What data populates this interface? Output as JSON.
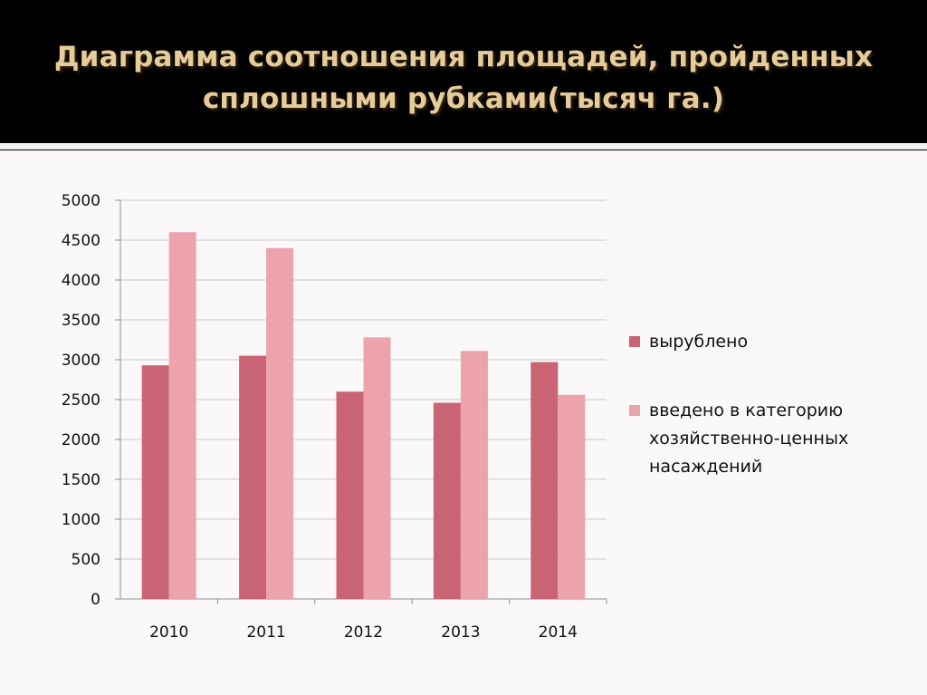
{
  "slide": {
    "title_line1": "Диаграмма соотношения площадей, пройденных",
    "title_line2": "сплошными рубками(тысяч га.)"
  },
  "colors": {
    "series1": "#c86474",
    "series2": "#eca3ab",
    "grid": "#c9c9c9",
    "axis": "#8f8f8f"
  },
  "chart_data": {
    "type": "bar",
    "title": "Диаграмма соотношения площадей, пройденных сплошными рубками(тысяч га.)",
    "categories": [
      "2010",
      "2011",
      "2012",
      "2013",
      "2014"
    ],
    "series": [
      {
        "name": "вырублено",
        "values": [
          2930,
          3050,
          2600,
          2460,
          2970
        ]
      },
      {
        "name": "введено в категорию хозяйственно-ценных насаждений",
        "values": [
          4600,
          4400,
          3280,
          3110,
          2560
        ]
      }
    ],
    "ylim": [
      0,
      5000
    ],
    "yticks": [
      "0",
      "500",
      "1000",
      "1500",
      "2000",
      "2500",
      "3000",
      "3500",
      "4000",
      "4500",
      "5000"
    ],
    "grid": true,
    "legend_position": "right",
    "legend_lines": [
      [
        "вырублено"
      ],
      [
        "введено в категорию",
        "хозяйственно-ценных",
        "насаждений"
      ]
    ]
  }
}
